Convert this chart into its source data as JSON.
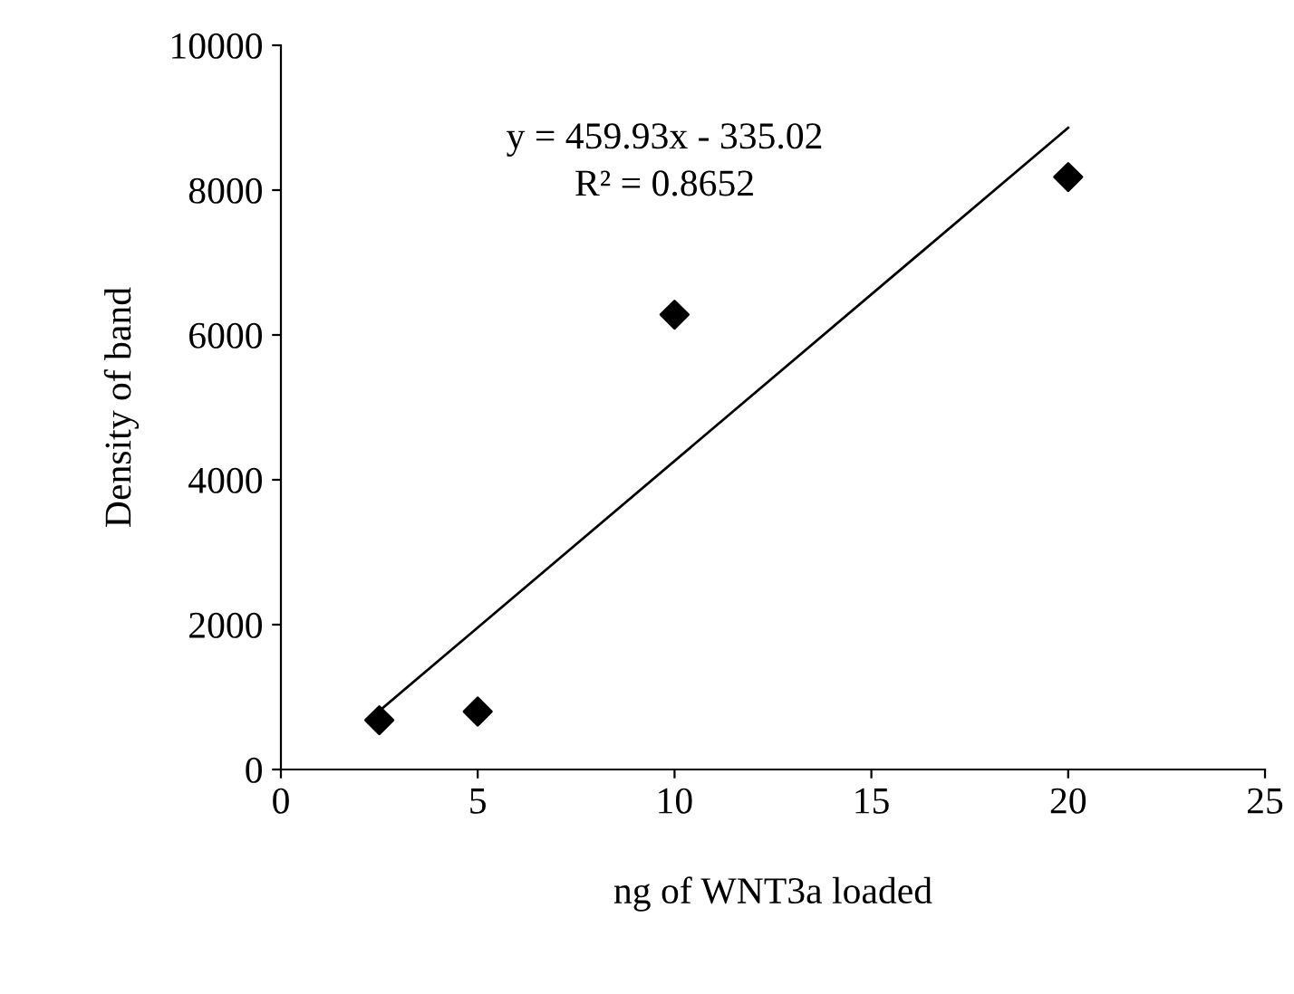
{
  "chart_data": {
    "type": "scatter",
    "xlabel": "ng of WNT3a loaded",
    "ylabel": "Density of band",
    "series": [
      {
        "color": "#000000",
        "marker": "diamond",
        "x": [
          2.5,
          5,
          10,
          20
        ],
        "values": [
          680,
          800,
          6280,
          8180
        ]
      },
      {
        "type": "line",
        "color": "#000000",
        "marker": "none",
        "line_style": "solid",
        "x": [
          2.5,
          20
        ],
        "values": [
          810,
          8860
        ]
      }
    ],
    "annotations": [
      "y = 459.93x - 335.02",
      "R² = 0.8652"
    ],
    "xlim": [
      0,
      25
    ],
    "xticks": [
      0,
      5,
      10,
      15,
      20,
      25
    ],
    "ylim": [
      0,
      10000
    ],
    "yticks": [
      0,
      2000,
      4000,
      6000,
      8000,
      10000
    ],
    "grid": false,
    "legend": false
  }
}
